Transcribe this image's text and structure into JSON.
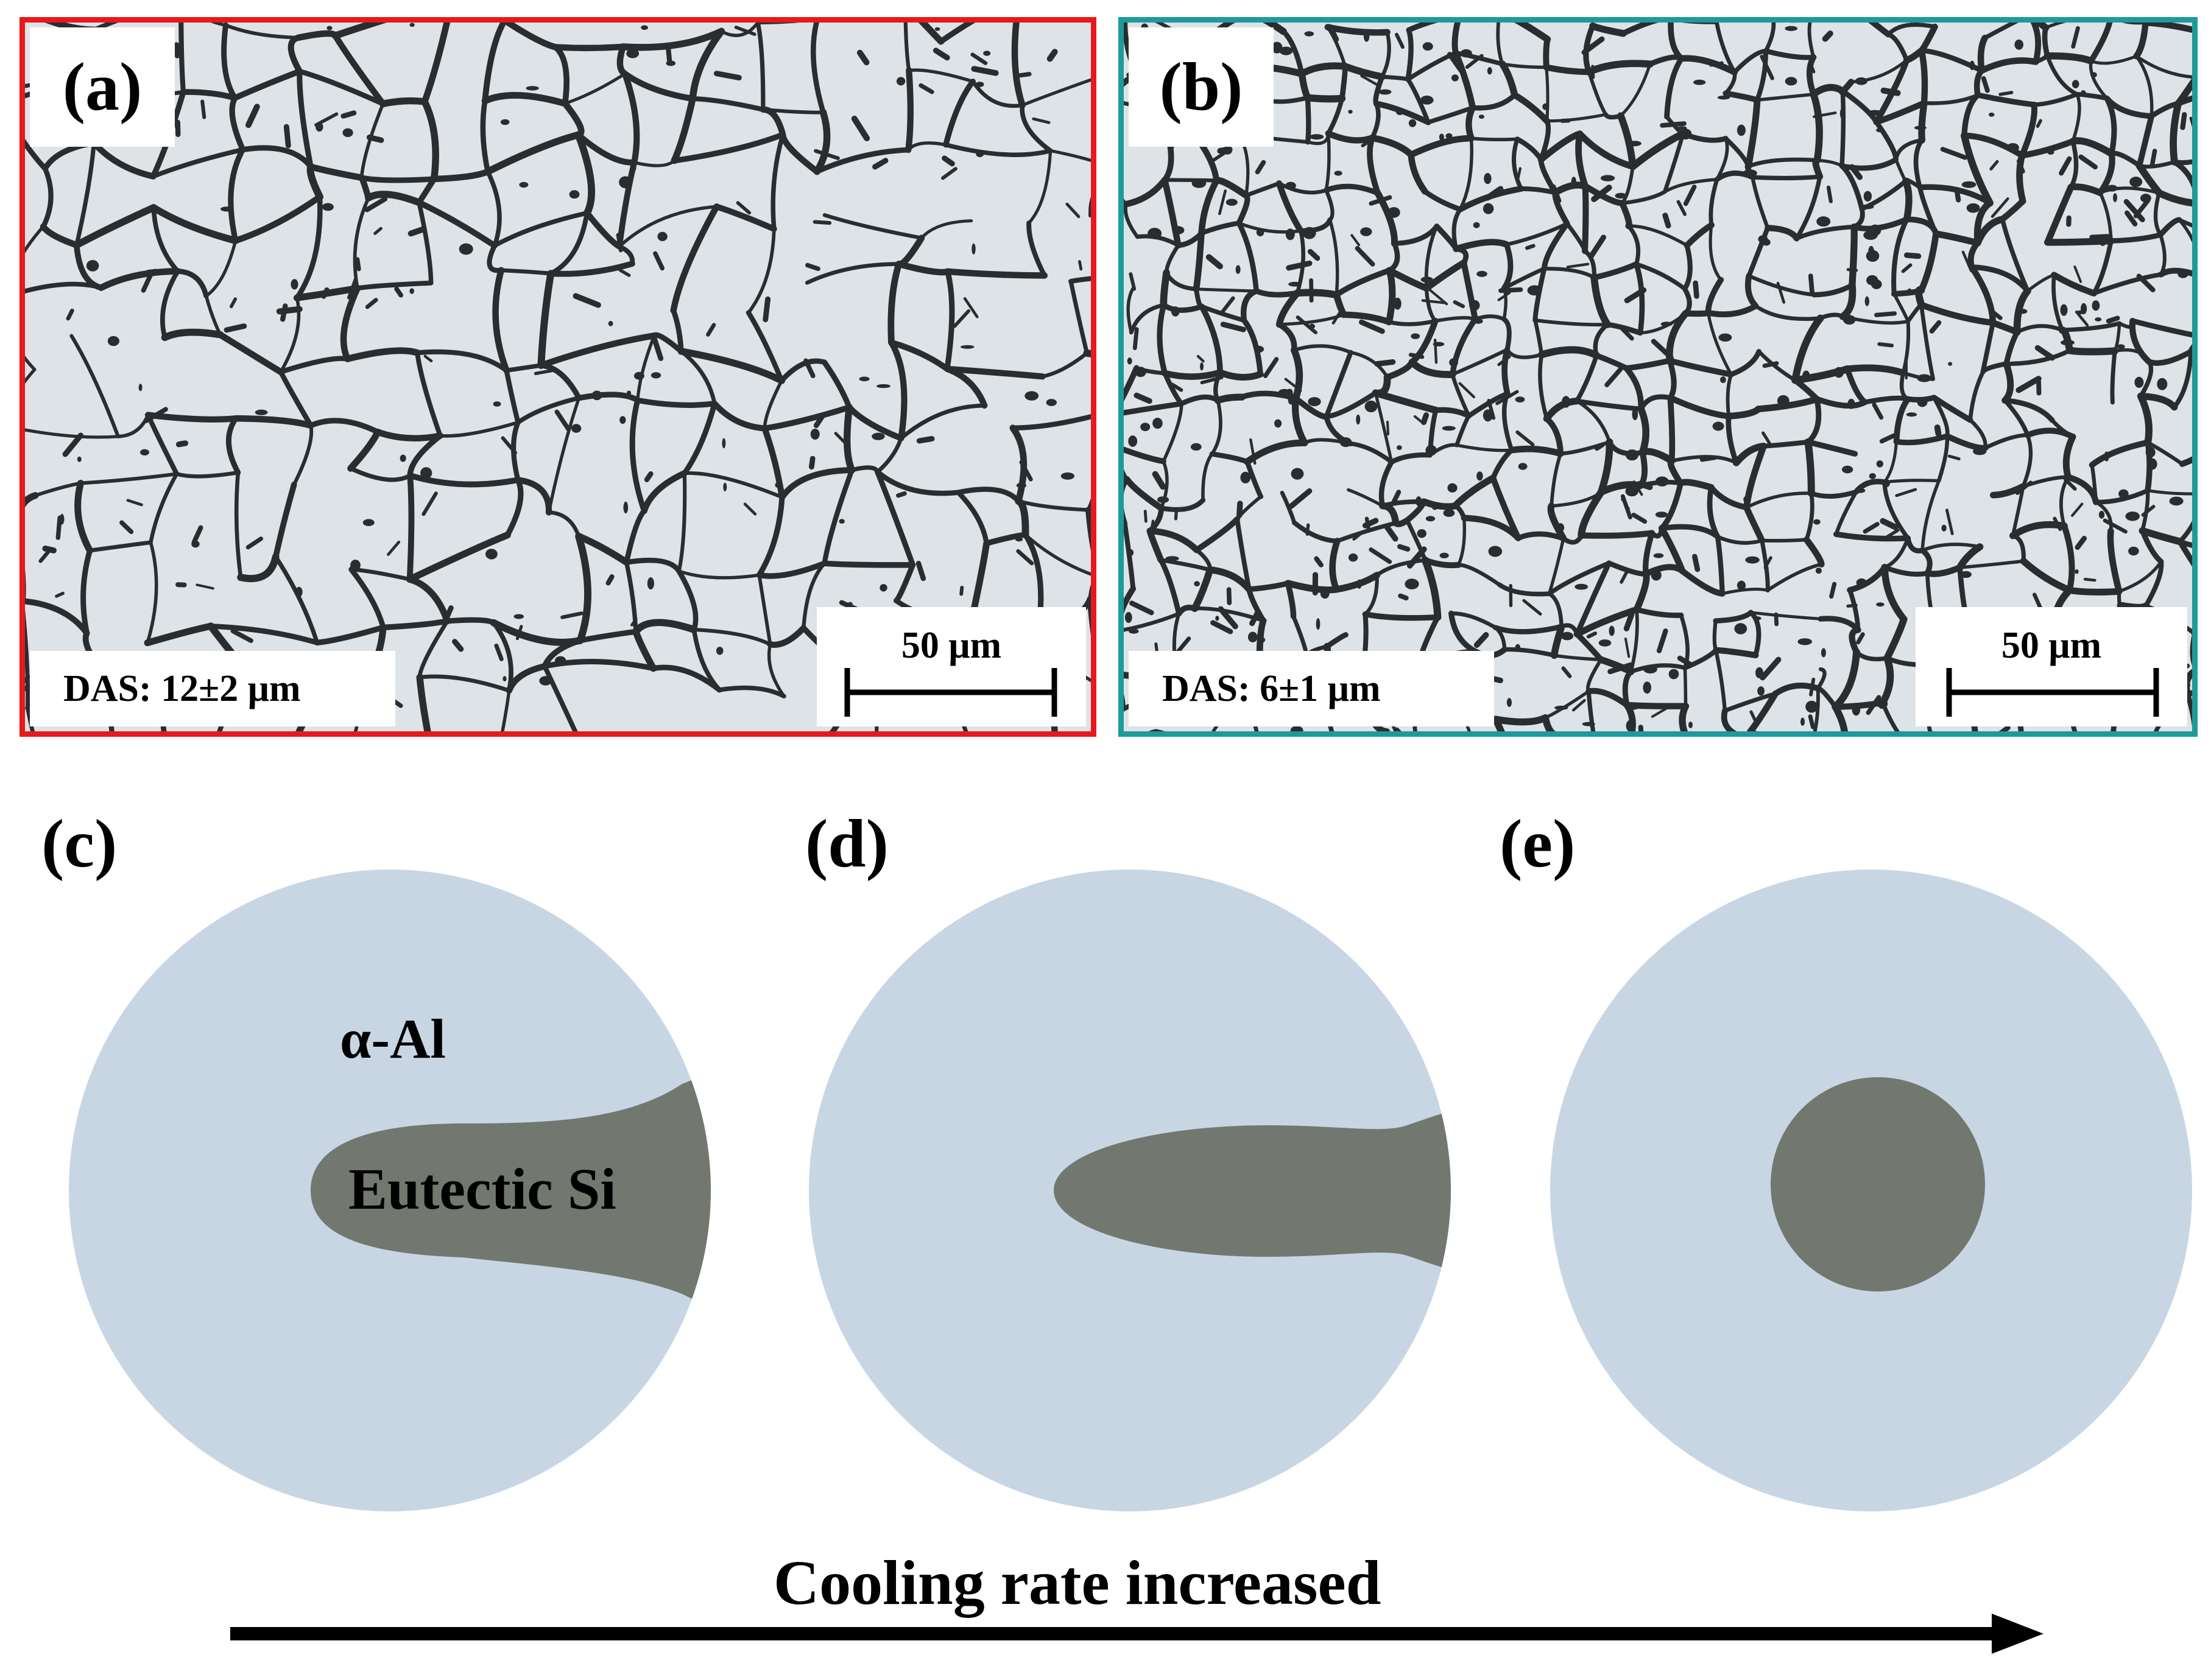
{
  "panels": {
    "a": {
      "label": "(a)",
      "das": "DAS: 12±2 μm",
      "scale_bar": "50 μm",
      "border_color": "#e8191c"
    },
    "b": {
      "label": "(b)",
      "das": "DAS: 6±1 μm",
      "scale_bar": "50 μm",
      "border_color": "#1e9a9a"
    },
    "c": {
      "label": "(c)",
      "phase_matrix": "α-Al",
      "phase_particle": "Eutectic Si"
    },
    "d": {
      "label": "(d)"
    },
    "e": {
      "label": "(e)"
    }
  },
  "arrow": {
    "text": "Cooling rate increased"
  },
  "colors": {
    "matrix": "#c8d6e4",
    "silicon": "#727870",
    "micrograph_bg": "#dde3e6",
    "network": "#2a2d30"
  }
}
